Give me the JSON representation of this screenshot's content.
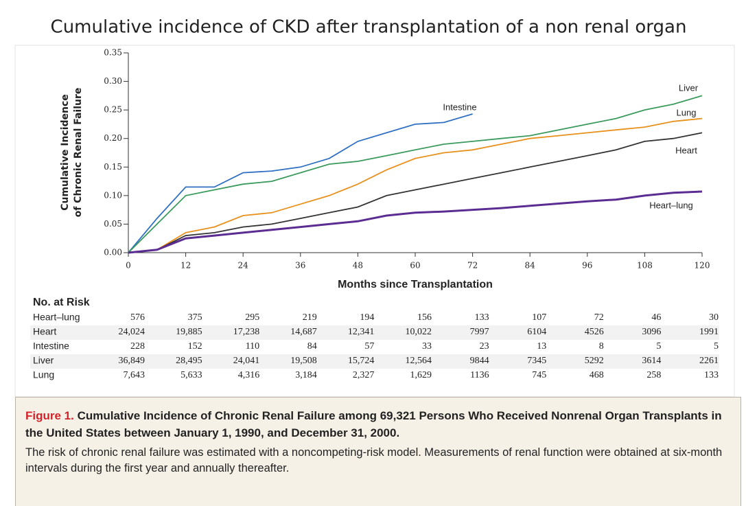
{
  "slide_title": "Cumulative incidence of CKD after transplantation of a non renal organ",
  "chart_data": {
    "type": "line",
    "xlabel": "Months since Transplantation",
    "ylabel": [
      "Cumulative Incidence",
      "of Chronic Renal Failure"
    ],
    "x": [
      0,
      6,
      12,
      18,
      24,
      30,
      36,
      42,
      48,
      54,
      60,
      66,
      72,
      78,
      84,
      90,
      96,
      102,
      108,
      114,
      120
    ],
    "series": [
      {
        "name": "Intestine",
        "color": "#2f6fc2",
        "values": [
          0,
          0.06,
          0.115,
          0.115,
          0.14,
          0.143,
          0.15,
          0.165,
          0.195,
          0.21,
          0.225,
          0.228,
          0.243,
          null,
          null,
          null,
          null,
          null,
          null,
          null,
          null
        ]
      },
      {
        "name": "Liver",
        "color": "#3a9a5c",
        "values": [
          0,
          0.05,
          0.1,
          0.11,
          0.12,
          0.125,
          0.14,
          0.155,
          0.16,
          0.17,
          0.18,
          0.19,
          0.195,
          0.2,
          0.205,
          0.215,
          0.225,
          0.235,
          0.25,
          0.26,
          0.275
        ]
      },
      {
        "name": "Lung",
        "color": "#e8901c",
        "values": [
          0,
          0.005,
          0.035,
          0.045,
          0.065,
          0.07,
          0.085,
          0.1,
          0.12,
          0.145,
          0.165,
          0.175,
          0.18,
          0.19,
          0.2,
          0.205,
          0.21,
          0.215,
          0.22,
          0.23,
          0.235
        ]
      },
      {
        "name": "Heart",
        "color": "#333333",
        "values": [
          0,
          0.005,
          0.03,
          0.035,
          0.045,
          0.05,
          0.06,
          0.07,
          0.08,
          0.1,
          0.11,
          0.12,
          0.13,
          0.14,
          0.15,
          0.16,
          0.17,
          0.18,
          0.195,
          0.2,
          0.21
        ]
      },
      {
        "name": "Heart–lung",
        "color": "#5b2c91",
        "values": [
          0,
          0.005,
          0.025,
          0.03,
          0.035,
          0.04,
          0.045,
          0.05,
          0.055,
          0.065,
          0.07,
          0.072,
          0.075,
          0.078,
          0.082,
          0.086,
          0.09,
          0.093,
          0.1,
          0.105,
          0.107
        ]
      }
    ],
    "xlim": [
      0,
      120
    ],
    "xticks": [
      0,
      12,
      24,
      36,
      48,
      60,
      72,
      84,
      96,
      108,
      120
    ],
    "ylim": [
      0,
      0.35
    ],
    "yticks": [
      {
        "value": 0,
        "label": "0.00"
      },
      {
        "value": 0.05,
        "label": "0.05"
      },
      {
        "value": 0.1,
        "label": "0.10"
      },
      {
        "value": 0.15,
        "label": "0.15"
      },
      {
        "value": 0.2,
        "label": "0.20"
      },
      {
        "value": 0.25,
        "label": "0.25"
      },
      {
        "value": 0.3,
        "label": "0.30"
      },
      {
        "value": 0.35,
        "label": "0.35"
      }
    ],
    "grid": false
  },
  "risk_table": {
    "title": "No. at Risk",
    "rows": [
      {
        "label": "Heart–lung",
        "values": [
          "576",
          "375",
          "295",
          "219",
          "194",
          "156",
          "133",
          "107",
          "72",
          "46",
          "30"
        ]
      },
      {
        "label": "Heart",
        "values": [
          "24,024",
          "19,885",
          "17,238",
          "14,687",
          "12,341",
          "10,022",
          "7997",
          "6104",
          "4526",
          "3096",
          "1991"
        ]
      },
      {
        "label": "Intestine",
        "values": [
          "228",
          "152",
          "110",
          "84",
          "57",
          "33",
          "23",
          "13",
          "8",
          "5",
          "5"
        ]
      },
      {
        "label": "Liver",
        "values": [
          "36,849",
          "28,495",
          "24,041",
          "19,508",
          "15,724",
          "12,564",
          "9844",
          "7345",
          "5292",
          "3614",
          "2261"
        ]
      },
      {
        "label": "Lung",
        "values": [
          "7,643",
          "5,633",
          "4,316",
          "3,184",
          "2,327",
          "1,629",
          "1136",
          "745",
          "468",
          "258",
          "133"
        ]
      }
    ]
  },
  "caption": {
    "label": "Figure 1.",
    "title": "Cumulative Incidence of Chronic Renal Failure among 69,321 Persons Who Received Nonrenal Organ Transplants in the United States between January 1, 1990, and December 31, 2000.",
    "text": "The risk of chronic renal failure was estimated with a noncompeting-risk model. Measurements of renal function were obtained at six-month intervals during the first year and annually thereafter."
  }
}
